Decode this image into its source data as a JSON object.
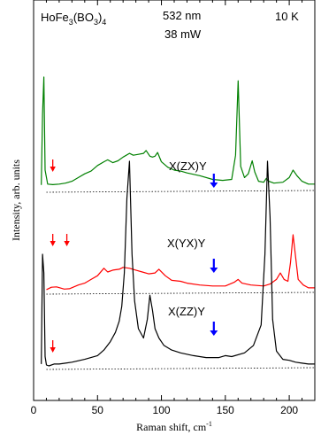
{
  "chart_data": {
    "type": "line",
    "xlabel": "Raman shift, cm",
    "xlabel_sup": "-1",
    "ylabel": "Intensity, arb. units",
    "xlim": [
      0,
      220
    ],
    "xticks": [
      0,
      50,
      100,
      150,
      200
    ],
    "y_ticks_shown": false,
    "annotations": {
      "compound": {
        "pre": "HoFe",
        "sub1": "3",
        "mid": "(BO",
        "sub2": "3",
        "post": ")",
        "sub3": "4"
      },
      "wavelength": "532 nm",
      "power": "38 mW",
      "temperature": "10 K"
    },
    "series": [
      {
        "name": "X(ZX)Y",
        "color": "#008000",
        "baseline": 0.0,
        "points": [
          [
            6,
            0.2
          ],
          [
            7,
            4.0
          ],
          [
            8,
            6.0
          ],
          [
            9,
            1.0
          ],
          [
            11,
            0.25
          ],
          [
            15,
            0.22
          ],
          [
            20,
            0.25
          ],
          [
            25,
            0.3
          ],
          [
            30,
            0.4
          ],
          [
            35,
            0.6
          ],
          [
            40,
            0.8
          ],
          [
            45,
            0.95
          ],
          [
            50,
            1.25
          ],
          [
            55,
            1.45
          ],
          [
            58,
            1.55
          ],
          [
            62,
            1.4
          ],
          [
            66,
            1.5
          ],
          [
            70,
            1.7
          ],
          [
            75,
            1.9
          ],
          [
            78,
            1.8
          ],
          [
            82,
            1.85
          ],
          [
            86,
            1.9
          ],
          [
            88,
            2.05
          ],
          [
            91,
            1.75
          ],
          [
            93,
            1.7
          ],
          [
            95,
            1.75
          ],
          [
            97,
            1.95
          ],
          [
            100,
            1.45
          ],
          [
            105,
            1.15
          ],
          [
            110,
            1.0
          ],
          [
            115,
            0.95
          ],
          [
            120,
            0.85
          ],
          [
            130,
            0.7
          ],
          [
            140,
            0.5
          ],
          [
            148,
            0.45
          ],
          [
            155,
            0.5
          ],
          [
            158,
            1.8
          ],
          [
            160,
            5.8
          ],
          [
            162,
            1.2
          ],
          [
            165,
            0.6
          ],
          [
            168,
            0.8
          ],
          [
            171,
            1.5
          ],
          [
            173,
            0.9
          ],
          [
            176,
            0.4
          ],
          [
            180,
            0.35
          ],
          [
            182,
            0.55
          ],
          [
            184,
            0.4
          ],
          [
            188,
            0.3
          ],
          [
            195,
            0.35
          ],
          [
            200,
            0.6
          ],
          [
            203,
            1.0
          ],
          [
            206,
            0.7
          ],
          [
            210,
            0.4
          ],
          [
            215,
            0.25
          ],
          [
            220,
            0.25
          ]
        ]
      },
      {
        "name": "X(YX)Y",
        "color": "#ff0000",
        "baseline": 0.0,
        "points": [
          [
            10,
            0.05
          ],
          [
            14,
            0.18
          ],
          [
            18,
            0.2
          ],
          [
            24,
            0.08
          ],
          [
            28,
            0.1
          ],
          [
            35,
            0.3
          ],
          [
            40,
            0.4
          ],
          [
            45,
            0.6
          ],
          [
            50,
            0.8
          ],
          [
            55,
            1.2
          ],
          [
            58,
            1.0
          ],
          [
            62,
            1.1
          ],
          [
            67,
            1.15
          ],
          [
            70,
            1.25
          ],
          [
            75,
            1.2
          ],
          [
            80,
            1.1
          ],
          [
            85,
            1.0
          ],
          [
            90,
            0.9
          ],
          [
            95,
            0.95
          ],
          [
            98,
            1.15
          ],
          [
            103,
            0.8
          ],
          [
            108,
            0.55
          ],
          [
            115,
            0.5
          ],
          [
            120,
            0.4
          ],
          [
            130,
            0.3
          ],
          [
            140,
            0.25
          ],
          [
            150,
            0.25
          ],
          [
            157,
            0.45
          ],
          [
            160,
            0.6
          ],
          [
            163,
            0.4
          ],
          [
            170,
            0.3
          ],
          [
            180,
            0.25
          ],
          [
            185,
            0.35
          ],
          [
            190,
            0.6
          ],
          [
            193,
            0.95
          ],
          [
            196,
            0.6
          ],
          [
            199,
            0.5
          ],
          [
            201,
            1.5
          ],
          [
            203,
            3.0
          ],
          [
            205,
            1.8
          ],
          [
            207,
            0.6
          ],
          [
            211,
            0.3
          ],
          [
            215,
            0.15
          ],
          [
            220,
            0.15
          ]
        ]
      },
      {
        "name": "X(ZZ)Y",
        "color": "#000000",
        "baseline": 0.0,
        "points": [
          [
            6,
            0.1
          ],
          [
            7,
            6.0
          ],
          [
            8,
            5.0
          ],
          [
            9,
            0.5
          ],
          [
            10,
            0.05
          ],
          [
            12,
            0.0
          ],
          [
            16,
            0.1
          ],
          [
            20,
            0.1
          ],
          [
            25,
            0.15
          ],
          [
            30,
            0.2
          ],
          [
            40,
            0.35
          ],
          [
            50,
            0.55
          ],
          [
            55,
            0.85
          ],
          [
            60,
            1.3
          ],
          [
            64,
            1.8
          ],
          [
            67,
            2.4
          ],
          [
            69,
            3.2
          ],
          [
            71,
            5.0
          ],
          [
            73,
            9.0
          ],
          [
            75,
            11.0
          ],
          [
            77,
            6.0
          ],
          [
            79,
            3.5
          ],
          [
            82,
            2.0
          ],
          [
            86,
            1.5
          ],
          [
            89,
            2.5
          ],
          [
            91,
            3.8
          ],
          [
            93,
            3.0
          ],
          [
            95,
            2.0
          ],
          [
            98,
            1.5
          ],
          [
            102,
            1.1
          ],
          [
            108,
            0.85
          ],
          [
            115,
            0.7
          ],
          [
            125,
            0.55
          ],
          [
            135,
            0.45
          ],
          [
            145,
            0.45
          ],
          [
            150,
            0.55
          ],
          [
            155,
            0.5
          ],
          [
            165,
            0.7
          ],
          [
            172,
            1.1
          ],
          [
            178,
            2.2
          ],
          [
            181,
            6.0
          ],
          [
            183,
            11.0
          ],
          [
            185,
            8.0
          ],
          [
            187,
            2.5
          ],
          [
            190,
            0.8
          ],
          [
            195,
            0.35
          ],
          [
            200,
            0.3
          ],
          [
            205,
            0.2
          ],
          [
            210,
            0.15
          ],
          [
            215,
            0.1
          ],
          [
            220,
            0.1
          ]
        ]
      }
    ],
    "red_arrows": [
      [
        15,
        1
      ],
      [
        15,
        2
      ],
      [
        26,
        2
      ],
      [
        15,
        3
      ]
    ],
    "blue_arrows": [
      [
        141,
        1
      ],
      [
        141,
        2
      ],
      [
        141,
        3
      ]
    ],
    "dotted_baselines": true
  }
}
